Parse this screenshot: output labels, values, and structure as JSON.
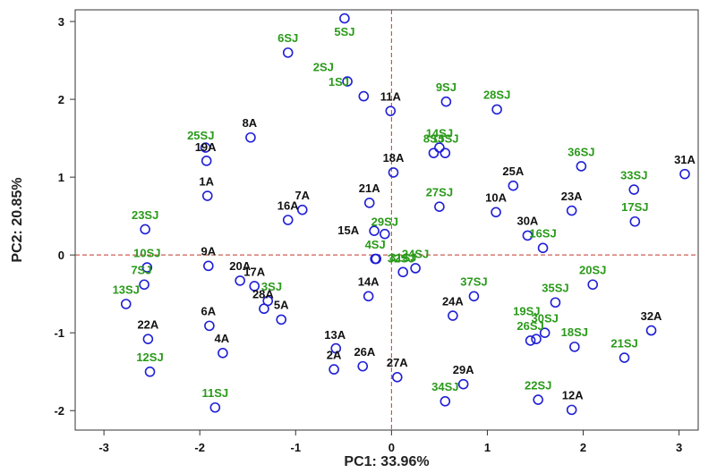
{
  "chart_data": {
    "type": "scatter",
    "xlabel": "PC1: 33.96%",
    "ylabel": "PC2: 20.85%",
    "xlim": [
      -3.3,
      3.2
    ],
    "ylim": [
      -2.25,
      3.15
    ],
    "xticks": [
      "-3",
      "-2",
      "-1",
      "0",
      "1",
      "2",
      "3"
    ],
    "yticks": [
      "3",
      "2",
      "1",
      "0",
      "-1",
      "-2"
    ],
    "grid": false,
    "reference_lines": {
      "x": 0,
      "y": 0,
      "color": "#c0392b"
    },
    "marker_color": "#1f1fd6",
    "series_colors": {
      "A": "#111111",
      "SJ": "#2a9a1a"
    },
    "points": [
      {
        "label": "1A",
        "group": "A",
        "x": -1.92,
        "y": 0.76,
        "lx": -1.93,
        "ly": 0.94
      },
      {
        "label": "2A",
        "group": "A",
        "x": -0.6,
        "y": -1.47,
        "lx": -0.6,
        "ly": -1.29
      },
      {
        "label": "4A",
        "group": "A",
        "x": -1.76,
        "y": -1.26,
        "lx": -1.77,
        "ly": -1.08
      },
      {
        "label": "5A",
        "group": "A",
        "x": -1.15,
        "y": -0.83,
        "lx": -1.15,
        "ly": -0.65
      },
      {
        "label": "6A",
        "group": "A",
        "x": -1.9,
        "y": -0.91,
        "lx": -1.91,
        "ly": -0.73
      },
      {
        "label": "7A",
        "group": "A",
        "x": -0.93,
        "y": 0.58,
        "lx": -0.93,
        "ly": 0.76
      },
      {
        "label": "8A",
        "group": "A",
        "x": -1.47,
        "y": 1.51,
        "lx": -1.48,
        "ly": 1.69
      },
      {
        "label": "9A",
        "group": "A",
        "x": -1.91,
        "y": -0.14,
        "lx": -1.91,
        "ly": 0.04
      },
      {
        "label": "10A",
        "group": "A",
        "x": 1.09,
        "y": 0.55,
        "lx": 1.09,
        "ly": 0.73
      },
      {
        "label": "11A",
        "group": "A",
        "x": -0.01,
        "y": 1.85,
        "lx": -0.01,
        "ly": 2.03
      },
      {
        "label": "12A",
        "group": "A",
        "x": 1.88,
        "y": -1.99,
        "lx": 1.89,
        "ly": -1.81
      },
      {
        "label": "13A",
        "group": "A",
        "x": -0.58,
        "y": -1.2,
        "lx": -0.59,
        "ly": -1.03
      },
      {
        "label": "14A",
        "group": "A",
        "x": -0.24,
        "y": -0.53,
        "lx": -0.24,
        "ly": -0.35
      },
      {
        "label": "15A",
        "group": "A",
        "x": -0.18,
        "y": 0.31,
        "lx": -0.45,
        "ly": 0.31
      },
      {
        "label": "16A",
        "group": "A",
        "x": -1.08,
        "y": 0.45,
        "lx": -1.08,
        "ly": 0.63
      },
      {
        "label": "17A",
        "group": "A",
        "x": -1.43,
        "y": -0.4,
        "lx": -1.43,
        "ly": -0.22
      },
      {
        "label": "18A",
        "group": "A",
        "x": 0.02,
        "y": 1.06,
        "lx": 0.02,
        "ly": 1.24
      },
      {
        "label": "19A",
        "group": "A",
        "x": -1.94,
        "y": 1.38,
        "lx": -1.94,
        "ly": 1.38
      },
      {
        "label": "20A",
        "group": "A",
        "x": -1.58,
        "y": -0.33,
        "lx": -1.58,
        "ly": -0.15
      },
      {
        "label": "21A",
        "group": "A",
        "x": -0.23,
        "y": 0.67,
        "lx": -0.23,
        "ly": 0.85
      },
      {
        "label": "22A",
        "group": "A",
        "x": -2.54,
        "y": -1.08,
        "lx": -2.54,
        "ly": -0.9
      },
      {
        "label": "23A",
        "group": "A",
        "x": 1.88,
        "y": 0.57,
        "lx": 1.88,
        "ly": 0.75
      },
      {
        "label": "24A",
        "group": "A",
        "x": 0.64,
        "y": -0.78,
        "lx": 0.64,
        "ly": -0.6
      },
      {
        "label": "25A",
        "group": "A",
        "x": 1.27,
        "y": 0.89,
        "lx": 1.27,
        "ly": 1.07
      },
      {
        "label": "26A",
        "group": "A",
        "x": -0.3,
        "y": -1.43,
        "lx": -0.28,
        "ly": -1.25
      },
      {
        "label": "27A",
        "group": "A",
        "x": 0.06,
        "y": -1.57,
        "lx": 0.06,
        "ly": -1.39
      },
      {
        "label": "28A",
        "group": "A",
        "x": -1.33,
        "y": -0.69,
        "lx": -1.34,
        "ly": -0.51
      },
      {
        "label": "29A",
        "group": "A",
        "x": 0.75,
        "y": -1.66,
        "lx": 0.75,
        "ly": -1.48
      },
      {
        "label": "30A",
        "group": "A",
        "x": 1.42,
        "y": 0.25,
        "lx": 1.42,
        "ly": 0.43
      },
      {
        "label": "31A",
        "group": "A",
        "x": 3.06,
        "y": 1.04,
        "lx": 3.06,
        "ly": 1.22
      },
      {
        "label": "32A",
        "group": "A",
        "x": 2.71,
        "y": -0.97,
        "lx": 2.71,
        "ly": -0.79
      },
      {
        "label": "1SJ",
        "group": "SJ",
        "x": -0.29,
        "y": 2.04,
        "lx": -0.55,
        "ly": 2.22
      },
      {
        "label": "2SJ",
        "group": "SJ",
        "x": -0.46,
        "y": 2.23,
        "lx": -0.71,
        "ly": 2.41
      },
      {
        "label": "3SJ",
        "group": "SJ",
        "x": -1.29,
        "y": -0.59,
        "lx": -1.25,
        "ly": -0.41
      },
      {
        "label": "4SJ",
        "group": "SJ",
        "x": -0.17,
        "y": -0.05,
        "lx": -0.17,
        "ly": 0.13
      },
      {
        "label": "5SJ",
        "group": "SJ",
        "x": -0.49,
        "y": 3.04,
        "lx": -0.49,
        "ly": 2.86
      },
      {
        "label": "6SJ",
        "group": "SJ",
        "x": -1.08,
        "y": 2.6,
        "lx": -1.08,
        "ly": 2.78
      },
      {
        "label": "7SJ",
        "group": "SJ",
        "x": -2.58,
        "y": -0.38,
        "lx": -2.61,
        "ly": -0.2
      },
      {
        "label": "8SJ",
        "group": "SJ",
        "x": 0.44,
        "y": 1.31,
        "lx": 0.44,
        "ly": 1.49
      },
      {
        "label": "9SJ",
        "group": "SJ",
        "x": 0.57,
        "y": 1.97,
        "lx": 0.57,
        "ly": 2.15
      },
      {
        "label": "10SJ",
        "group": "SJ",
        "x": -2.55,
        "y": -0.16,
        "lx": -2.55,
        "ly": 0.02
      },
      {
        "label": "11SJ",
        "group": "SJ",
        "x": -1.84,
        "y": -1.96,
        "lx": -1.84,
        "ly": -1.78
      },
      {
        "label": "12SJ",
        "group": "SJ",
        "x": -2.52,
        "y": -1.5,
        "lx": -2.52,
        "ly": -1.32
      },
      {
        "label": "13SJ",
        "group": "SJ",
        "x": -2.77,
        "y": -0.63,
        "lx": -2.77,
        "ly": -0.45
      },
      {
        "label": "14SJ",
        "group": "SJ",
        "x": 0.5,
        "y": 1.38,
        "lx": 0.5,
        "ly": 1.56
      },
      {
        "label": "15SJ",
        "group": "SJ",
        "x": 0.56,
        "y": 1.31,
        "lx": 0.56,
        "ly": 1.49
      },
      {
        "label": "16SJ",
        "group": "SJ",
        "x": 1.58,
        "y": 0.09,
        "lx": 1.58,
        "ly": 0.27
      },
      {
        "label": "17SJ",
        "group": "SJ",
        "x": 2.54,
        "y": 0.43,
        "lx": 2.54,
        "ly": 0.61
      },
      {
        "label": "18SJ",
        "group": "SJ",
        "x": 1.91,
        "y": -1.18,
        "lx": 1.91,
        "ly": -1.0
      },
      {
        "label": "19SJ",
        "group": "SJ",
        "x": 1.51,
        "y": -1.08,
        "lx": 1.41,
        "ly": -0.73
      },
      {
        "label": "20SJ",
        "group": "SJ",
        "x": 2.1,
        "y": -0.38,
        "lx": 2.1,
        "ly": -0.2
      },
      {
        "label": "21SJ",
        "group": "SJ",
        "x": 2.43,
        "y": -1.32,
        "lx": 2.43,
        "ly": -1.14
      },
      {
        "label": "22SJ",
        "group": "SJ",
        "x": 1.53,
        "y": -1.86,
        "lx": 1.53,
        "ly": -1.68
      },
      {
        "label": "23SJ",
        "group": "SJ",
        "x": -2.57,
        "y": 0.33,
        "lx": -2.57,
        "ly": 0.51
      },
      {
        "label": "24SJ",
        "group": "SJ",
        "x": 0.25,
        "y": -0.17,
        "lx": 0.25,
        "ly": 0.01
      },
      {
        "label": "25SJ",
        "group": "SJ",
        "x": -1.93,
        "y": 1.21,
        "lx": -1.99,
        "ly": 1.53
      },
      {
        "label": "26SJ",
        "group": "SJ",
        "x": 1.45,
        "y": -1.1,
        "lx": 1.45,
        "ly": -0.92
      },
      {
        "label": "27SJ",
        "group": "SJ",
        "x": 0.5,
        "y": 0.62,
        "lx": 0.5,
        "ly": 0.8
      },
      {
        "label": "28SJ",
        "group": "SJ",
        "x": 1.1,
        "y": 1.87,
        "lx": 1.1,
        "ly": 2.05
      },
      {
        "label": "29SJ",
        "group": "SJ",
        "x": -0.07,
        "y": 0.27,
        "lx": -0.07,
        "ly": 0.42
      },
      {
        "label": "30SJ",
        "group": "SJ",
        "x": 1.6,
        "y": -1.0,
        "lx": 1.6,
        "ly": -0.82
      },
      {
        "label": "31SJ",
        "group": "SJ",
        "x": 0.12,
        "y": -0.22,
        "lx": 0.12,
        "ly": -0.04
      },
      {
        "label": "32SJ",
        "group": "SJ",
        "x": -0.16,
        "y": -0.05,
        "lx": 0.1,
        "ly": -0.05
      },
      {
        "label": "33SJ",
        "group": "SJ",
        "x": 2.53,
        "y": 0.84,
        "lx": 2.53,
        "ly": 1.02
      },
      {
        "label": "34SJ",
        "group": "SJ",
        "x": 0.56,
        "y": -1.88,
        "lx": 0.56,
        "ly": -1.7
      },
      {
        "label": "35SJ",
        "group": "SJ",
        "x": 1.71,
        "y": -0.61,
        "lx": 1.71,
        "ly": -0.43
      },
      {
        "label": "36SJ",
        "group": "SJ",
        "x": 1.98,
        "y": 1.14,
        "lx": 1.98,
        "ly": 1.32
      },
      {
        "label": "37SJ",
        "group": "SJ",
        "x": 0.86,
        "y": -0.53,
        "lx": 0.86,
        "ly": -0.35
      }
    ]
  }
}
